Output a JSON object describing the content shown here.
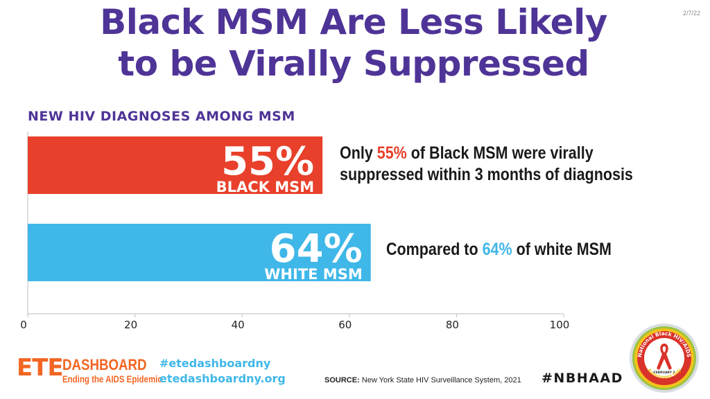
{
  "slide": {
    "title_line1": "Black MSM Are Less Likely",
    "title_line2": "to be Virally Suppressed",
    "date": "2/7/22"
  },
  "chart_data": {
    "type": "bar",
    "orientation": "horizontal",
    "title": "NEW HIV DIAGNOSES AMONG MSM",
    "categories": [
      "BLACK MSM",
      "WHITE MSM"
    ],
    "values": [
      55,
      64
    ],
    "value_labels": [
      "55%",
      "64%"
    ],
    "colors": [
      "#e8402a",
      "#3fb7e8"
    ],
    "xlim": [
      0,
      100
    ],
    "xticks": [
      0,
      20,
      40,
      60,
      80,
      100
    ],
    "grid": false
  },
  "callouts": {
    "black": {
      "pre": "Only ",
      "highlight": "55%",
      "post_line1": " of Black MSM were virally",
      "line2": "suppressed within 3 months of diagnosis"
    },
    "white": {
      "pre": "Compared to ",
      "highlight": "64%",
      "post": " of white MSM"
    }
  },
  "footer": {
    "logo_ete": "ETE",
    "logo_dashboard": "DASHBOARD",
    "logo_tagline": "Ending the AIDS Epidemic",
    "hashtag_site": "#etedashboardny",
    "website": "etedashboardny.org",
    "source_label": "SOURCE:",
    "source_text": " New York State HIV Surveillance System, 2021",
    "hashtag": "#NBHAAD",
    "badge_text": "National Black HIV/AIDS",
    "badge_date": "FEBRUARY 7",
    "badge_sub": "Awareness Day",
    "icons": [
      "red-ribbon-icon"
    ]
  }
}
